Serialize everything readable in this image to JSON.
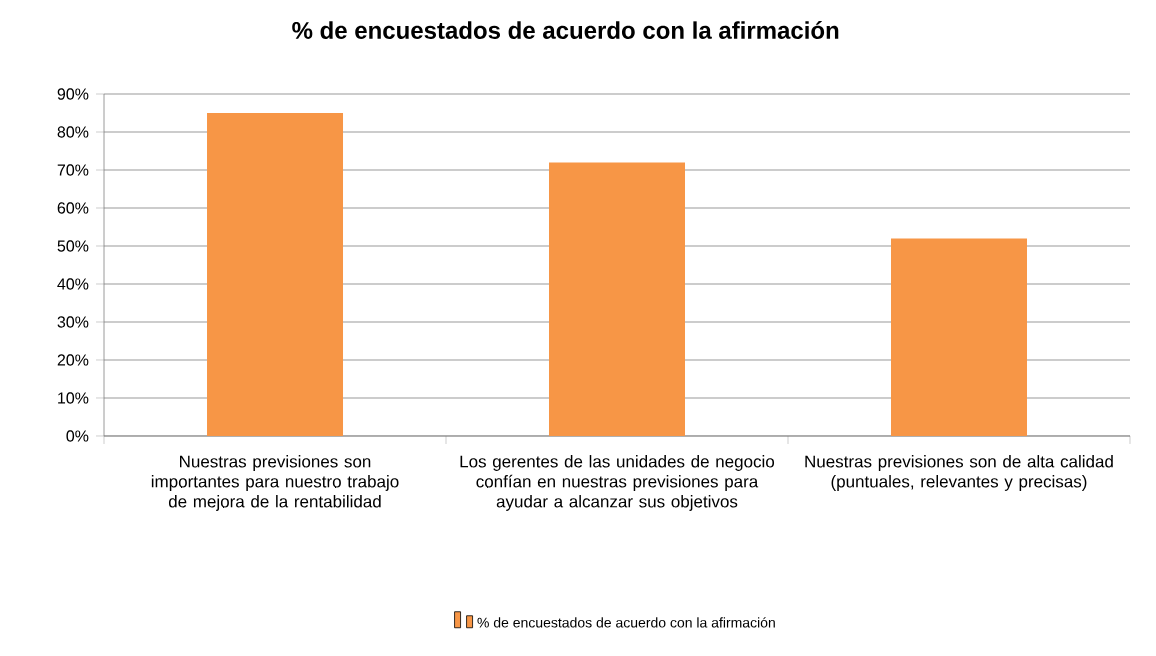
{
  "chart_data": {
    "type": "bar",
    "title": "% de encuestados de acuerdo con la afirmación",
    "categories": [
      "Nuestras previsiones son importantes para nuestro trabajo de mejora de la rentabilidad",
      "Los gerentes de las unidades de negocio confían en nuestras previsiones para ayudar a alcanzar sus objetivos",
      "Nuestras previsiones son de alta calidad (puntuales, relevantes y precisas)"
    ],
    "series": [
      {
        "name": "% de encuestados de acuerdo con la afirmación",
        "color": "#f79646",
        "values": [
          85,
          72,
          52
        ]
      }
    ],
    "ylim": [
      0,
      90
    ],
    "yticks": [
      {
        "value": 0,
        "label": "0%"
      },
      {
        "value": 10,
        "label": "10%"
      },
      {
        "value": 20,
        "label": "20%"
      },
      {
        "value": 30,
        "label": "30%"
      },
      {
        "value": 40,
        "label": "40%"
      },
      {
        "value": 50,
        "label": "50%"
      },
      {
        "value": 60,
        "label": "60%"
      },
      {
        "value": 70,
        "label": "70%"
      },
      {
        "value": 80,
        "label": "80%"
      },
      {
        "value": 90,
        "label": "90%"
      }
    ],
    "grid": "y",
    "legend": "bottom"
  }
}
